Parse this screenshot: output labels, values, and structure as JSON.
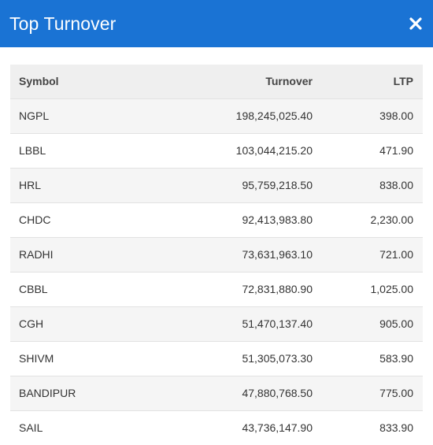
{
  "header": {
    "title": "Top Turnover",
    "close_icon": "close-icon"
  },
  "table": {
    "columns": [
      "Symbol",
      "Turnover",
      "LTP"
    ],
    "rows": [
      {
        "symbol": "NGPL",
        "turnover": "198,245,025.40",
        "ltp": "398.00"
      },
      {
        "symbol": "LBBL",
        "turnover": "103,044,215.20",
        "ltp": "471.90"
      },
      {
        "symbol": "HRL",
        "turnover": "95,759,218.50",
        "ltp": "838.00"
      },
      {
        "symbol": "CHDC",
        "turnover": "92,413,983.80",
        "ltp": "2,230.00"
      },
      {
        "symbol": "RADHI",
        "turnover": "73,631,963.10",
        "ltp": "721.00"
      },
      {
        "symbol": "CBBL",
        "turnover": "72,831,880.90",
        "ltp": "1,025.00"
      },
      {
        "symbol": "CGH",
        "turnover": "51,470,137.40",
        "ltp": "905.00"
      },
      {
        "symbol": "SHIVM",
        "turnover": "51,305,073.30",
        "ltp": "583.90"
      },
      {
        "symbol": "BANDIPUR",
        "turnover": "47,880,768.50",
        "ltp": "775.00"
      },
      {
        "symbol": "SAIL",
        "turnover": "43,736,147.90",
        "ltp": "833.90"
      }
    ]
  },
  "colors": {
    "header_bg": "#1a73d4",
    "header_text": "#ffffff",
    "table_header_bg": "#efefef",
    "row_alt_bg": "#f5f5f5"
  }
}
